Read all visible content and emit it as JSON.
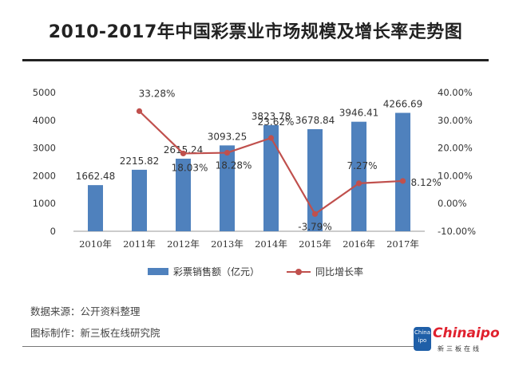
{
  "title": "2010-2017年中国彩票业市场规模及增长率走势图",
  "footer": {
    "source": "数据来源：公开资料整理",
    "maker": "图标制作：新三板在线研究院"
  },
  "logo": {
    "main": "Chinaipo",
    "sub": "新三板在线",
    "badge": "China ipo"
  },
  "colors": {
    "bar": "#4f81bd",
    "line": "#c0504d",
    "axis": "#999999",
    "text": "#333333"
  },
  "chart_data": {
    "type": "bar",
    "categories": [
      "2010年",
      "2011年",
      "2012年",
      "2013年",
      "2014年",
      "2015年",
      "2016年",
      "2017年"
    ],
    "series": [
      {
        "name": "彩票销售额（亿元）",
        "type": "bar",
        "axis": "left",
        "values": [
          1662.48,
          2215.82,
          2615.24,
          3093.25,
          3823.78,
          3678.84,
          3946.41,
          4266.69
        ],
        "labels": [
          "1662.48",
          "2215.82",
          "2615.24",
          "3093.25",
          "3823.78",
          "3678.84",
          "3946.41",
          "4266.69"
        ]
      },
      {
        "name": "同比增长率",
        "type": "line",
        "axis": "right",
        "values": [
          null,
          33.28,
          18.03,
          18.28,
          23.62,
          -3.79,
          7.27,
          8.12
        ],
        "labels": [
          "",
          "33.28%",
          "18.03%",
          "18.28%",
          "23.62%",
          "-3.79%",
          "7.27%",
          "8.12%"
        ]
      }
    ],
    "y_left": {
      "min": 0,
      "max": 5000,
      "ticks": [
        "0",
        "1000",
        "2000",
        "3000",
        "4000",
        "5000"
      ]
    },
    "y_right": {
      "min": -10,
      "max": 40,
      "ticks": [
        "-10.00%",
        "0.00%",
        "10.00%",
        "20.00%",
        "30.00%",
        "40.00%"
      ]
    },
    "grid": false,
    "legend": "bottom"
  }
}
